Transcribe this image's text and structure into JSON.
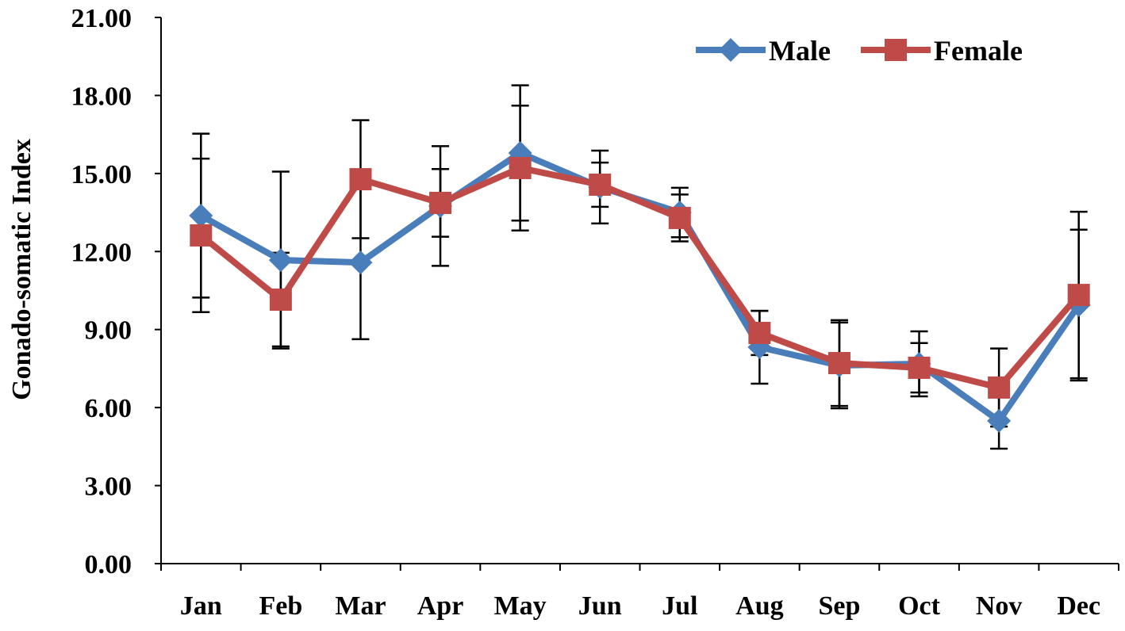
{
  "chart_data": {
    "type": "line",
    "title": "",
    "xlabel": "",
    "ylabel": "Gonado-somatic Index",
    "ylim": [
      0,
      21
    ],
    "yticks": [
      "0.00",
      "3.00",
      "6.00",
      "9.00",
      "12.00",
      "15.00",
      "18.00",
      "21.00"
    ],
    "ytick_values": [
      0,
      3,
      6,
      9,
      12,
      15,
      18,
      21
    ],
    "categories": [
      "Jan",
      "Feb",
      "Mar",
      "Apr",
      "May",
      "Jun",
      "Jul",
      "Aug",
      "Sep",
      "Oct",
      "Nov",
      "Dec"
    ],
    "grid": false,
    "legend_position": "top-right",
    "series": [
      {
        "name": "Male",
        "color": "#4a7ebb",
        "marker": "diamond",
        "values": [
          13.38,
          11.67,
          11.58,
          13.75,
          15.79,
          14.48,
          13.5,
          8.32,
          7.62,
          7.68,
          5.49,
          9.94
        ],
        "errors": [
          3.15,
          3.4,
          2.95,
          2.3,
          2.6,
          1.4,
          0.95,
          1.4,
          1.65,
          1.25,
          1.07,
          2.9
        ]
      },
      {
        "name": "Female",
        "color": "#be4b48",
        "marker": "square",
        "values": [
          12.62,
          10.15,
          14.78,
          13.87,
          15.21,
          14.57,
          13.29,
          8.87,
          7.71,
          7.53,
          6.77,
          10.33
        ],
        "errors": [
          2.95,
          1.8,
          2.27,
          1.3,
          2.4,
          0.85,
          0.9,
          0.85,
          1.65,
          0.95,
          1.5,
          3.2
        ]
      }
    ]
  }
}
